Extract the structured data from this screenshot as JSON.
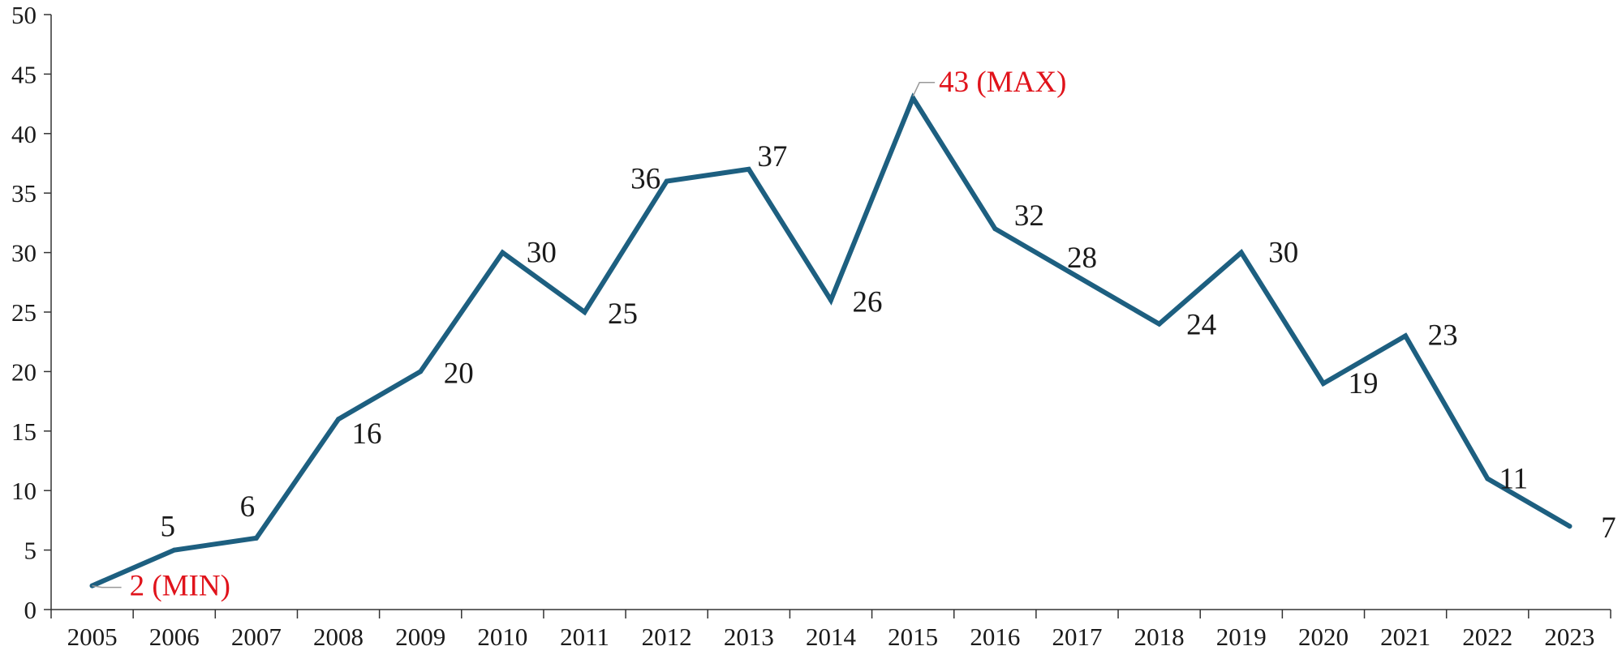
{
  "chart_data": {
    "type": "line",
    "title": "",
    "xlabel": "",
    "ylabel": "",
    "x": [
      "2005",
      "2006",
      "2007",
      "2008",
      "2009",
      "2010",
      "2011",
      "2012",
      "2013",
      "2014",
      "2015",
      "2016",
      "2017",
      "2018",
      "2019",
      "2020",
      "2021",
      "2022",
      "2023"
    ],
    "series": [
      {
        "values": [
          2,
          5,
          6,
          16,
          20,
          30,
          25,
          36,
          37,
          26,
          43,
          32,
          28,
          24,
          30,
          19,
          23,
          11,
          7
        ]
      }
    ],
    "data_labels": [
      "2 (MIN)",
      "5",
      "6",
      "16",
      "20",
      "30",
      "25",
      "36",
      "37",
      "26",
      "43 (MAX)",
      "32",
      "28",
      "24",
      "30",
      "19",
      "23",
      "11",
      "7"
    ],
    "ylim": [
      0,
      50
    ],
    "yticks": [
      "0",
      "5",
      "10",
      "15",
      "20",
      "25",
      "30",
      "35",
      "40",
      "45",
      "50"
    ],
    "grid": false,
    "line_color": "#1d5f80",
    "highlight_color": "#e0131b"
  }
}
